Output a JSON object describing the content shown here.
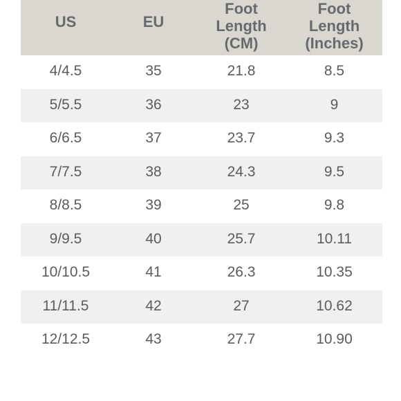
{
  "table": {
    "headers": [
      {
        "label": "US"
      },
      {
        "label": "EU"
      },
      {
        "label": "Foot\nLength\n(CM)"
      },
      {
        "label": "Foot\nLength\n(Inches)"
      }
    ],
    "rows": [
      [
        "4/4.5",
        "35",
        "21.8",
        "8.5"
      ],
      [
        "5/5.5",
        "36",
        "23",
        "9"
      ],
      [
        "6/6.5",
        "37",
        "23.7",
        "9.3"
      ],
      [
        "7/7.5",
        "38",
        "24.3",
        "9.5"
      ],
      [
        "8/8.5",
        "39",
        "25",
        "9.8"
      ],
      [
        "9/9.5",
        "40",
        "25.7",
        "10.11"
      ],
      [
        "10/10.5",
        "41",
        "26.3",
        "10.35"
      ],
      [
        "11/11.5",
        "42",
        "27",
        "10.62"
      ],
      [
        "12/12.5",
        "43",
        "27.7",
        "10.90"
      ]
    ],
    "colors": {
      "header_bg": "#d9d7cf",
      "alt_row_bg": "#eff0f2",
      "text": "#5b5b5b"
    }
  }
}
